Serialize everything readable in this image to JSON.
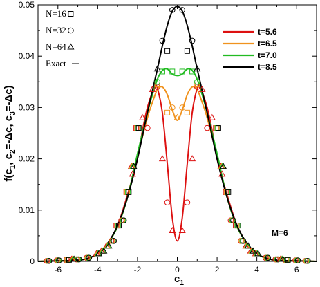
{
  "chart_data": {
    "type": "line",
    "xlabel": {
      "main": "c",
      "sub": "1"
    },
    "ylabel": {
      "parts": [
        {
          "t": "f(c"
        },
        {
          "t": "1",
          "sub": true
        },
        {
          "t": ", c"
        },
        {
          "t": "2",
          "sub": true
        },
        {
          "t": "=-Δc, c"
        },
        {
          "t": "3",
          "sub": true
        },
        {
          "t": "=-Δc)"
        }
      ]
    },
    "xlim": [
      -7,
      7
    ],
    "ylim": [
      0,
      0.05
    ],
    "xticks": [
      -6,
      -4,
      -2,
      0,
      2,
      4,
      6
    ],
    "xtick_labels": [
      "-6",
      "-4",
      "-2",
      "0",
      "2",
      "4",
      "6"
    ],
    "yticks": [
      0,
      0.01,
      0.02,
      0.03,
      0.04,
      0.05
    ],
    "ytick_labels": [
      "0",
      "0.01",
      "0.02",
      "0.03",
      "0.04",
      "0.05"
    ],
    "legend_placement": "top-right",
    "grid": false,
    "annotation": "M=6",
    "symbol_legend": [
      {
        "label": "N=16",
        "marker": "square"
      },
      {
        "label": "N=32",
        "marker": "circle"
      },
      {
        "label": "N=64",
        "marker": "triangle"
      },
      {
        "label": "Exact",
        "marker": "line"
      }
    ],
    "series": [
      {
        "name": "t=5.6",
        "color": "#dd1111",
        "x": [
          -7,
          -6,
          -5,
          -4.5,
          -4,
          -3.5,
          -3,
          -2.5,
          -2,
          -1.75,
          -1.5,
          -1.25,
          -1.1,
          -1,
          -0.75,
          -0.5,
          -0.25,
          0,
          0.25,
          0.5,
          0.75,
          1,
          1.1,
          1.25,
          1.5,
          1.75,
          2,
          2.5,
          3,
          3.5,
          4,
          4.5,
          5,
          6,
          7
        ],
        "y": [
          0,
          0.0001,
          0.0002,
          0.0006,
          0.0015,
          0.0035,
          0.007,
          0.013,
          0.02,
          0.0255,
          0.03,
          0.033,
          0.034,
          0.0338,
          0.029,
          0.019,
          0.0085,
          0.004,
          0.0085,
          0.019,
          0.029,
          0.0338,
          0.034,
          0.033,
          0.03,
          0.0255,
          0.02,
          0.013,
          0.007,
          0.0035,
          0.0015,
          0.0006,
          0.0002,
          0.0001,
          0
        ]
      },
      {
        "name": "t=6.5",
        "color": "#f0921e",
        "x": [
          -7,
          -6,
          -5,
          -4.5,
          -4,
          -3.5,
          -3,
          -2.5,
          -2,
          -1.5,
          -1.25,
          -1,
          -0.75,
          -0.5,
          -0.25,
          0,
          0.25,
          0.5,
          0.75,
          1,
          1.25,
          1.5,
          2,
          2.5,
          3,
          3.5,
          4,
          4.5,
          5,
          6,
          7
        ],
        "y": [
          0,
          0.0001,
          0.0002,
          0.0006,
          0.0015,
          0.0035,
          0.0068,
          0.0125,
          0.0205,
          0.028,
          0.031,
          0.0335,
          0.034,
          0.0325,
          0.0295,
          0.0275,
          0.0295,
          0.0325,
          0.034,
          0.0335,
          0.031,
          0.028,
          0.0205,
          0.0125,
          0.0068,
          0.0035,
          0.0015,
          0.0006,
          0.0002,
          0.0001,
          0
        ]
      },
      {
        "name": "t=7.0",
        "color": "#22bb22",
        "x": [
          -7,
          -6,
          -5,
          -4.5,
          -4,
          -3.5,
          -3,
          -2.5,
          -2,
          -1.5,
          -1.25,
          -1,
          -0.75,
          -0.5,
          -0.25,
          0,
          0.25,
          0.5,
          0.75,
          1,
          1.25,
          1.5,
          2,
          2.5,
          3,
          3.5,
          4,
          4.5,
          5,
          6,
          7
        ],
        "y": [
          0,
          0.0001,
          0.0002,
          0.0006,
          0.0015,
          0.0035,
          0.0068,
          0.0125,
          0.021,
          0.029,
          0.0325,
          0.0355,
          0.0372,
          0.0375,
          0.0365,
          0.0362,
          0.0365,
          0.0375,
          0.0372,
          0.0355,
          0.0325,
          0.029,
          0.021,
          0.0125,
          0.0068,
          0.0035,
          0.0015,
          0.0006,
          0.0002,
          0.0001,
          0
        ]
      },
      {
        "name": "t=8.5",
        "color": "#000000",
        "x": [
          -7,
          -6,
          -5,
          -4.5,
          -4,
          -3.5,
          -3,
          -2.5,
          -2,
          -1.5,
          -1,
          -0.75,
          -0.5,
          -0.25,
          0,
          0.25,
          0.5,
          0.75,
          1,
          1.5,
          2,
          2.5,
          3,
          3.5,
          4,
          4.5,
          5,
          6,
          7
        ],
        "y": [
          0,
          0.0001,
          0.0002,
          0.0006,
          0.0015,
          0.0035,
          0.007,
          0.0125,
          0.02,
          0.029,
          0.0375,
          0.042,
          0.046,
          0.0488,
          0.0497,
          0.0488,
          0.046,
          0.042,
          0.0375,
          0.029,
          0.02,
          0.0125,
          0.007,
          0.0035,
          0.0015,
          0.0006,
          0.0002,
          0.0001,
          0
        ]
      }
    ],
    "markers": [
      {
        "series": "t=5.6",
        "marker": "circle",
        "x": [
          -0.5,
          0.5
        ],
        "y": [
          0.0115,
          0.0115
        ]
      },
      {
        "series": "t=5.6",
        "marker": "circle",
        "x": [
          -1,
          1
        ],
        "y": [
          0.034,
          0.034
        ]
      },
      {
        "series": "t=5.6",
        "marker": "circle",
        "x": [
          -1.5,
          1.5
        ],
        "y": [
          0.026,
          0.026
        ]
      },
      {
        "series": "t=5.6",
        "marker": "triangle",
        "x": [
          -0.25,
          0.25
        ],
        "y": [
          0.006,
          0.006
        ]
      },
      {
        "series": "t=5.6",
        "marker": "triangle",
        "x": [
          -0.75,
          0.75
        ],
        "y": [
          0.02,
          0.02
        ]
      },
      {
        "series": "t=5.6",
        "marker": "triangle",
        "x": [
          -1.25,
          1.25
        ],
        "y": [
          0.0335,
          0.0335
        ]
      },
      {
        "series": "t=5.6",
        "marker": "triangle",
        "x": [
          -1.75,
          1.75
        ],
        "y": [
          0.028,
          0.028
        ]
      },
      {
        "series": "t=5.6",
        "marker": "triangle",
        "x": [
          -2.25,
          2.25
        ],
        "y": [
          0.017,
          0.017
        ]
      },
      {
        "series": "t=6.5",
        "marker": "square",
        "x": [
          -0.5,
          0.5
        ],
        "y": [
          0.029,
          0.029
        ]
      },
      {
        "series": "t=6.5",
        "marker": "square",
        "x": [
          -1,
          1
        ],
        "y": [
          0.0345,
          0.0345
        ]
      },
      {
        "series": "t=6.5",
        "marker": "circle",
        "x": [
          -0.25,
          0.25
        ],
        "y": [
          0.03,
          0.03
        ]
      },
      {
        "series": "t=6.5",
        "marker": "triangle",
        "x": [
          0
        ],
        "y": [
          0.028
        ]
      },
      {
        "series": "t=7.0",
        "marker": "circle",
        "x": [
          -1,
          1
        ],
        "y": [
          0.035,
          0.035
        ]
      },
      {
        "series": "t=7.0",
        "marker": "square",
        "x": [
          -0.75,
          0.75,
          -0.25,
          0.25
        ],
        "y": [
          0.037,
          0.037,
          0.037,
          0.037
        ]
      },
      {
        "series": "t=8.5",
        "marker": "circle",
        "x": [
          -0.25,
          0.25,
          -0.75,
          0.75
        ],
        "y": [
          0.049,
          0.049,
          0.043,
          0.043
        ]
      },
      {
        "series": "t=8.5",
        "marker": "square",
        "x": [
          -0.5,
          0.5
        ],
        "y": [
          0.041,
          0.041
        ]
      },
      {
        "series": "t=8.5",
        "marker": "triangle",
        "x": [
          -1.0,
          1.0
        ],
        "y": [
          0.0375,
          0.0375
        ]
      },
      {
        "series": "all",
        "marker": "square",
        "x": [
          -2.5,
          2.5,
          -2,
          2,
          -3,
          3
        ],
        "y": [
          0.0135,
          0.0135,
          0.026,
          0.026,
          0.007,
          0.007
        ]
      },
      {
        "series": "all",
        "marker": "circle",
        "x": [
          -2.75,
          2.75,
          -3.25,
          3.25
        ],
        "y": [
          0.008,
          0.008,
          0.004,
          0.004
        ]
      },
      {
        "series": "all",
        "marker": "triangle",
        "x": [
          -2.25,
          2.25,
          -3.5,
          3.5,
          -4,
          4
        ],
        "y": [
          0.0185,
          0.0185,
          0.003,
          0.003,
          0.0015,
          0.0015
        ]
      },
      {
        "series": "all",
        "marker": "circle",
        "x": [
          -5,
          -4.5,
          -6,
          -6.5,
          5,
          4.5,
          6,
          6.5
        ],
        "y": [
          0.0004,
          0.0007,
          0.0002,
          0.0001,
          0.0004,
          0.0007,
          0.0002,
          0.0001
        ]
      },
      {
        "series": "all",
        "marker": "square",
        "x": [
          -5.5,
          5.5
        ],
        "y": [
          0.0003,
          0.0003
        ]
      },
      {
        "series": "all",
        "marker": "triangle",
        "x": [
          -5.25,
          5.25,
          -3.75,
          3.75
        ],
        "y": [
          0.0004,
          0.0004,
          0.002,
          0.002
        ]
      }
    ]
  }
}
